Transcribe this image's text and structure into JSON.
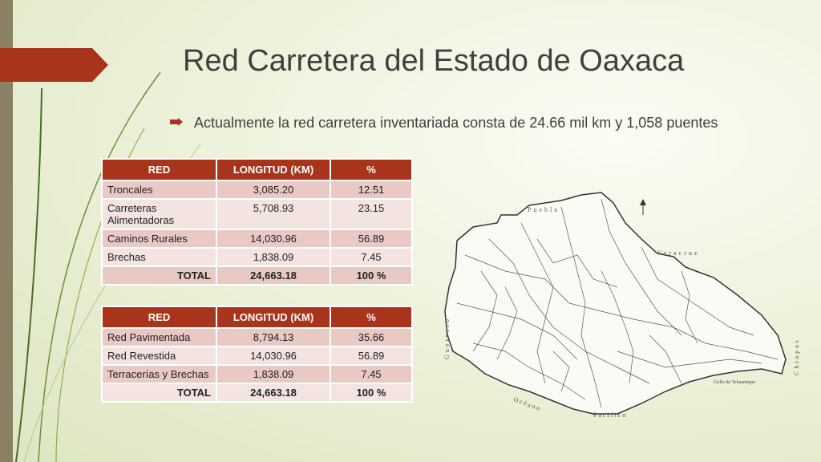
{
  "slide": {
    "title": "Red Carretera del Estado de Oaxaca",
    "bullet": "Actualmente la red carretera inventariada consta de 24.66 mil km y 1,058 puentes"
  },
  "colors": {
    "accent": "#a8341c",
    "row_odd": "#e8c9c4",
    "row_even": "#f3e4e1",
    "sidebar": "#8a8064"
  },
  "table1": {
    "headers": [
      "RED",
      "LONGITUD (KM)",
      "%"
    ],
    "rows": [
      {
        "red": "Troncales",
        "km": "3,085.20",
        "pct": "12.51"
      },
      {
        "red": "Carreteras Alimentadoras",
        "km": "5,708.93",
        "pct": "23.15"
      },
      {
        "red": "Caminos Rurales",
        "km": "14,030.96",
        "pct": "56.89"
      },
      {
        "red": "Brechas",
        "km": "1,838.09",
        "pct": "7.45"
      }
    ],
    "total": {
      "red": "TOTAL",
      "km": "24,663.18",
      "pct": "100 %"
    }
  },
  "table2": {
    "headers": [
      "RED",
      "LONGITUD (KM)",
      "%"
    ],
    "rows": [
      {
        "red": "Red Pavimentada",
        "km": "8,794.13",
        "pct": "35.66"
      },
      {
        "red": "Red Revestida",
        "km": "14,030.96",
        "pct": "56.89"
      },
      {
        "red": "Terracerías y Brechas",
        "km": "1,838.09",
        "pct": "7.45"
      }
    ],
    "total": {
      "red": "TOTAL",
      "km": "24,663.18",
      "pct": "100 %"
    }
  },
  "map": {
    "labels": {
      "puebla": "Puebla",
      "veracruz": "Veracruz",
      "guerrero": "Guerrero",
      "chiapas": "Chiapas",
      "golfo": "Golfo de Tehuantepec",
      "oceano": "Océano",
      "pacifico": "Pacífico"
    }
  }
}
